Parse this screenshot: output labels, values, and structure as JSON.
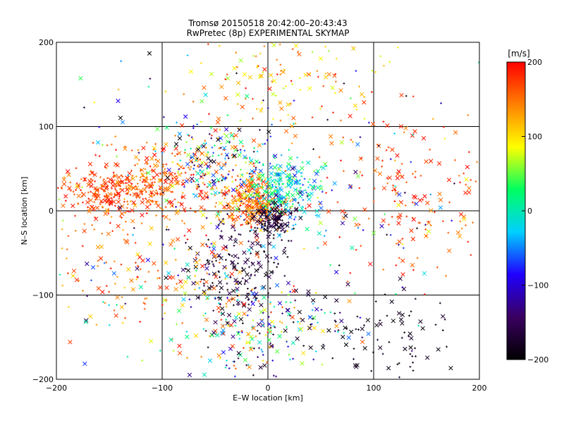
{
  "chart_data": {
    "type": "scatter",
    "title": "Tromsø 20150518 20:42:00–20:43:43",
    "subtitle": "RwPretec (8p) EXPERIMENTAL SKYMAP",
    "xlabel": "E–W location [km]",
    "ylabel": "N–S location [km]",
    "xlim": [
      -200,
      200
    ],
    "ylim": [
      -200,
      200
    ],
    "xticks": [
      -200,
      -100,
      0,
      100,
      200
    ],
    "yticks": [
      -200,
      -100,
      0,
      100,
      200
    ],
    "xtick_labels": [
      "−200",
      "−100",
      "0",
      "100",
      "200"
    ],
    "ytick_labels": [
      "−200",
      "−100",
      "0",
      "100",
      "200"
    ],
    "grid": true,
    "marker_types": [
      "x",
      "+"
    ],
    "colorbar": {
      "unit": "[m/s]",
      "range": [
        -200,
        200
      ],
      "ticks": [
        200,
        100,
        0,
        -100,
        -200
      ],
      "tick_labels": [
        "200",
        "100",
        "0",
        "−100",
        "−200"
      ],
      "colormap": [
        "#000000",
        "#3a0060",
        "#2000ff",
        "#00d0ff",
        "#00ff60",
        "#ffff00",
        "#ff8000",
        "#ff0000"
      ]
    },
    "series": [
      {
        "clusters": [
          {
            "cx": -150,
            "cy": 20,
            "sx": 25,
            "sy": 15,
            "n": 220,
            "vmin": 140,
            "vmax": 200
          },
          {
            "cx": -100,
            "cy": 40,
            "sx": 35,
            "sy": 20,
            "n": 220,
            "vmin": 120,
            "vmax": 200
          },
          {
            "cx": -50,
            "cy": 60,
            "sx": 25,
            "sy": 25,
            "n": 170,
            "vmin": -200,
            "vmax": 200
          },
          {
            "cx": -15,
            "cy": 10,
            "sx": 15,
            "sy": 15,
            "n": 280,
            "vmin": 100,
            "vmax": 200
          },
          {
            "cx": 15,
            "cy": 25,
            "sx": 18,
            "sy": 18,
            "n": 240,
            "vmin": -80,
            "vmax": 60
          },
          {
            "cx": 5,
            "cy": -10,
            "sx": 12,
            "sy": 12,
            "n": 130,
            "vmin": -200,
            "vmax": -150
          },
          {
            "cx": -30,
            "cy": -70,
            "sx": 22,
            "sy": 30,
            "n": 180,
            "vmin": -200,
            "vmax": -140
          },
          {
            "cx": -10,
            "cy": -140,
            "sx": 35,
            "sy": 35,
            "n": 220,
            "vmin": -200,
            "vmax": 200
          },
          {
            "cx": 100,
            "cy": -150,
            "sx": 40,
            "sy": 30,
            "n": 90,
            "vmin": -200,
            "vmax": -170
          },
          {
            "cx": 140,
            "cy": 20,
            "sx": 50,
            "sy": 50,
            "n": 170,
            "vmin": 140,
            "vmax": 200
          },
          {
            "cx": 20,
            "cy": 160,
            "sx": 45,
            "sy": 30,
            "n": 120,
            "vmin": 60,
            "vmax": 200
          },
          {
            "cx": -120,
            "cy": -60,
            "sx": 50,
            "sy": 45,
            "n": 170,
            "vmin": 100,
            "vmax": 200
          },
          {
            "cx": 0,
            "cy": 0,
            "sx": 110,
            "sy": 110,
            "n": 380,
            "vmin": -200,
            "vmax": 200
          }
        ]
      }
    ]
  }
}
